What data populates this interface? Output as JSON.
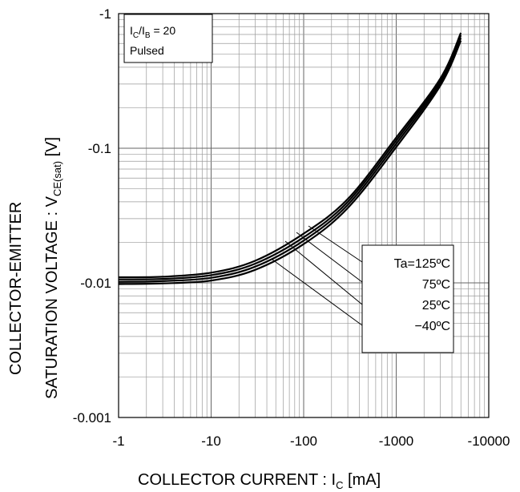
{
  "chart_data": {
    "type": "line",
    "xlabel": {
      "main": "COLLECTOR CURRENT : I",
      "sub": "C",
      "unit": " [mA]"
    },
    "ylabel": {
      "line1": "COLLECTOR-EMITTER",
      "line2_main": "SATURATION VOLTAGE : V",
      "line2_sub": "CE(sat)",
      "line2_unit": " [V]"
    },
    "x_scale": "log",
    "y_scale": "log",
    "x_axis_reversed_sign": true,
    "xlim": [
      -1,
      -10000
    ],
    "ylim": [
      -0.001,
      -1
    ],
    "x_tick_labels": [
      "-1",
      "-10",
      "-100",
      "-1000",
      "-10000"
    ],
    "y_tick_labels": [
      "-1",
      "-0.1",
      "-0.01",
      "-0.001"
    ],
    "grid": true,
    "notes": {
      "condition": {
        "main": "I",
        "sub1": "C",
        "mid": "/I",
        "sub2": "B",
        "tail": " = 20"
      },
      "mode": "Pulsed"
    },
    "legend_placement": "lower-right",
    "series": [
      {
        "name": "Ta=125ºC",
        "x": [
          -1,
          -3,
          -10,
          -30,
          -100,
          -300,
          -1000,
          -3000,
          -5000
        ],
        "y": [
          -0.0098,
          -0.0099,
          -0.0104,
          -0.0125,
          -0.0194,
          -0.036,
          -0.102,
          -0.292,
          -0.63
        ]
      },
      {
        "name": "75ºC",
        "x": [
          -1,
          -3,
          -10,
          -30,
          -100,
          -300,
          -1000,
          -3000,
          -5000
        ],
        "y": [
          -0.0102,
          -0.0103,
          -0.0109,
          -0.0132,
          -0.0206,
          -0.038,
          -0.108,
          -0.305,
          -0.66
        ]
      },
      {
        "name": "25ºC",
        "x": [
          -1,
          -3,
          -10,
          -30,
          -100,
          -300,
          -1000,
          -3000,
          -5000
        ],
        "y": [
          -0.0106,
          -0.0107,
          -0.0114,
          -0.0139,
          -0.0218,
          -0.04,
          -0.114,
          -0.318,
          -0.69
        ]
      },
      {
        "name": "−40ºC",
        "x": [
          -1,
          -3,
          -10,
          -30,
          -100,
          -300,
          -1000,
          -3000,
          -5000
        ],
        "y": [
          -0.011,
          -0.0111,
          -0.0119,
          -0.0146,
          -0.0232,
          -0.042,
          -0.12,
          -0.33,
          -0.72
        ]
      }
    ],
    "colors": {
      "line": "#000000",
      "grid": "#9a9a9a",
      "background": "#ffffff"
    }
  }
}
